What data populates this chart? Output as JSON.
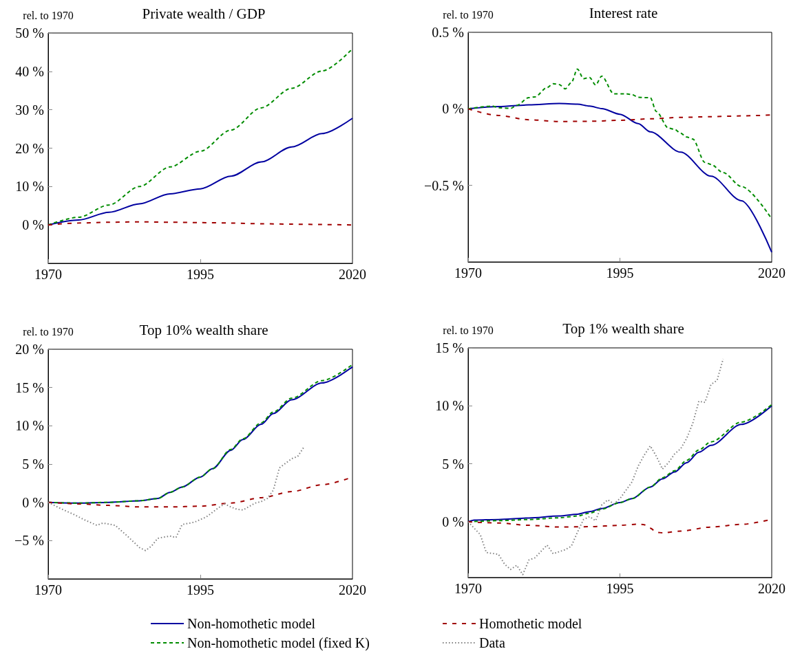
{
  "chart_data": [
    {
      "type": "line",
      "title": "Private wealth / GDP",
      "ylabel": "rel. to 1970",
      "xlim": [
        1970,
        2020
      ],
      "xticks": [
        1970,
        1995,
        2020
      ],
      "ylim": [
        -10,
        50
      ],
      "yticks": [
        {
          "value": 0,
          "label": "0 %"
        },
        {
          "value": 10,
          "label": "10 %"
        },
        {
          "value": 20,
          "label": "20 %"
        },
        {
          "value": 30,
          "label": "30 %"
        },
        {
          "value": 40,
          "label": "40 %"
        },
        {
          "value": 50,
          "label": "50 %"
        }
      ],
      "series": [
        {
          "color": "#0000a0",
          "line_style": "solid",
          "x": [
            1970,
            1975,
            1980,
            1985,
            1990,
            1995,
            2000,
            2005,
            2010,
            2015,
            2020
          ],
          "values": [
            0,
            1.3,
            3.3,
            5.5,
            8.1,
            9.4,
            12.7,
            16.4,
            20.3,
            23.8,
            27.8
          ]
        },
        {
          "color": "#008c00",
          "line_style": "dashed",
          "x": [
            1970,
            1975,
            1980,
            1985,
            1990,
            1995,
            2000,
            2005,
            2010,
            2015,
            2020
          ],
          "values": [
            0,
            2.0,
            5.2,
            10,
            15.1,
            19.2,
            24.7,
            30.5,
            35.6,
            40.1,
            45.9
          ]
        },
        {
          "color": "#a00000",
          "line_style": "dashed",
          "x": [
            1970,
            1975,
            1980,
            1985,
            1990,
            1995,
            2000,
            2005,
            2010,
            2015,
            2020
          ],
          "values": [
            0,
            0.5,
            0.7,
            0.8,
            0.7,
            0.6,
            0.5,
            0.3,
            0.2,
            0.1,
            0
          ]
        }
      ]
    },
    {
      "type": "line",
      "title": "Interest rate",
      "ylabel": "rel. to 1970",
      "xlim": [
        1970,
        2020
      ],
      "xticks": [
        1970,
        1995,
        2020
      ],
      "ylim": [
        -1,
        0.5
      ],
      "yticks": [
        {
          "value": 0.5,
          "label": "0.5 %"
        },
        {
          "value": 0,
          "label": "0 %"
        },
        {
          "value": -0.5,
          "label": "−0.5 %"
        }
      ],
      "series": [
        {
          "color": "#0000a0",
          "line_style": "solid",
          "x": [
            1970,
            1975,
            1980,
            1985,
            1988,
            1990,
            1992,
            1995,
            1998,
            2000,
            2005,
            2010,
            2015,
            2020
          ],
          "values": [
            0,
            0.015,
            0.026,
            0.035,
            0.031,
            0.018,
            0.002,
            -0.035,
            -0.096,
            -0.15,
            -0.283,
            -0.44,
            -0.6,
            -0.937
          ]
        },
        {
          "color": "#008c00",
          "line_style": "dashed",
          "x": [
            1970,
            1974,
            1975,
            1977,
            1978,
            1980,
            1981,
            1983,
            1984,
            1985,
            1986,
            1987,
            1988,
            1989,
            1990,
            1991,
            1992,
            1994,
            1996,
            1997,
            1998,
            1999,
            2000,
            2001,
            2003,
            2004,
            2005,
            2006,
            2007,
            2009,
            2010,
            2012,
            2015,
            2020
          ],
          "values": [
            0,
            0.018,
            0.007,
            0.003,
            0.023,
            0.073,
            0.078,
            0.139,
            0.164,
            0.159,
            0.131,
            0.172,
            0.26,
            0.197,
            0.205,
            0.156,
            0.214,
            0.098,
            0.098,
            0.093,
            0.076,
            0.073,
            0.073,
            -0.018,
            -0.126,
            -0.134,
            -0.159,
            -0.184,
            -0.197,
            -0.35,
            -0.363,
            -0.416,
            -0.507,
            -0.719
          ]
        },
        {
          "color": "#a00000",
          "line_style": "dashed",
          "x": [
            1970,
            1975,
            1980,
            1985,
            1990,
            1995,
            2000,
            2005,
            2010,
            2015,
            2020
          ],
          "values": [
            0,
            -0.043,
            -0.071,
            -0.083,
            -0.081,
            -0.075,
            -0.065,
            -0.056,
            -0.051,
            -0.046,
            -0.04
          ]
        }
      ]
    },
    {
      "type": "line",
      "title": "Top 10% wealth share",
      "ylabel": "rel. to 1970",
      "legend": "bottom",
      "xlim": [
        1970,
        2020
      ],
      "xticks": [
        1970,
        1995,
        2020
      ],
      "ylim": [
        -10,
        20
      ],
      "yticks": [
        {
          "value": -5,
          "label": "−5 %"
        },
        {
          "value": 0,
          "label": "0 %"
        },
        {
          "value": 5,
          "label": "5 %"
        },
        {
          "value": 10,
          "label": "10 %"
        },
        {
          "value": 15,
          "label": "15 %"
        },
        {
          "value": 20,
          "label": "20 %"
        }
      ],
      "series": [
        {
          "name": "Non-homothetic model",
          "color": "#0000a0",
          "line_style": "solid",
          "x": [
            1970,
            1975,
            1980,
            1985,
            1988,
            1990,
            1992,
            1995,
            1997,
            2000,
            2002,
            2005,
            2007,
            2010,
            2015,
            2020
          ],
          "values": [
            0,
            -0.1,
            0,
            0.2,
            0.5,
            1.3,
            2.0,
            3.3,
            4.4,
            6.8,
            8.2,
            10.2,
            11.6,
            13.4,
            15.6,
            17.7
          ]
        },
        {
          "name": "Non-homothetic model (fixed K)",
          "color": "#008c00",
          "line_style": "dashed",
          "x": [
            1970,
            1975,
            1980,
            1985,
            1988,
            1990,
            1992,
            1995,
            1997,
            2000,
            2002,
            2005,
            2007,
            2010,
            2015,
            2020
          ],
          "values": [
            0,
            -0.1,
            0,
            0.2,
            0.5,
            1.3,
            2.0,
            3.3,
            4.4,
            6.9,
            8.3,
            10.4,
            11.8,
            13.6,
            15.9,
            18.0
          ]
        },
        {
          "name": "Homothetic model",
          "color": "#a00000",
          "line_style": "dashed",
          "x": [
            1970,
            1975,
            1980,
            1985,
            1990,
            1995,
            2000,
            2005,
            2010,
            2015,
            2020
          ],
          "values": [
            0,
            -0.2,
            -0.4,
            -0.6,
            -0.6,
            -0.5,
            -0.1,
            0.6,
            1.4,
            2.3,
            3.3
          ]
        },
        {
          "name": "Data",
          "color": "#808080",
          "line_style": "dotted",
          "x": [
            1970,
            1972,
            1974,
            1976,
            1978,
            1979,
            1981,
            1983,
            1985,
            1986,
            1987,
            1988,
            1990,
            1991,
            1992,
            1994,
            1996,
            1998,
            1999,
            2000,
            2001,
            2002,
            2004,
            2005,
            2006,
            2007,
            2008,
            2010,
            2011,
            2012
          ],
          "values": [
            0,
            -0.8,
            -1.5,
            -2.3,
            -3.0,
            -2.7,
            -3.0,
            -4.4,
            -5.9,
            -6.3,
            -5.7,
            -4.7,
            -4.4,
            -4.6,
            -2.9,
            -2.6,
            -1.9,
            -0.7,
            -0.2,
            -0.6,
            -0.9,
            -1.0,
            -0.1,
            0.1,
            0.5,
            1.6,
            4.5,
            5.7,
            6.0,
            7.2
          ]
        }
      ]
    },
    {
      "type": "line",
      "title": "Top 1% wealth share",
      "ylabel": "rel. to 1970",
      "xlim": [
        1970,
        2020
      ],
      "xticks": [
        1970,
        1995,
        2020
      ],
      "ylim": [
        -4.8,
        15
      ],
      "yticks": [
        {
          "value": 0,
          "label": "0 %"
        },
        {
          "value": 5,
          "label": "5 %"
        },
        {
          "value": 10,
          "label": "10 %"
        },
        {
          "value": 15,
          "label": "15 %"
        }
      ],
      "series": [
        {
          "color": "#0000a0",
          "line_style": "solid",
          "x": [
            1970,
            1971,
            1975,
            1980,
            1985,
            1988,
            1990,
            1992,
            1995,
            1997,
            2000,
            2002,
            2004,
            2006,
            2008,
            2010,
            2015,
            2020
          ],
          "values": [
            0,
            0.15,
            0.2,
            0.33,
            0.5,
            0.66,
            0.88,
            1.15,
            1.66,
            2.0,
            3.0,
            3.7,
            4.3,
            5.1,
            6.0,
            6.6,
            8.4,
            10.0
          ]
        },
        {
          "color": "#008c00",
          "line_style": "dashed",
          "x": [
            1970,
            1975,
            1980,
            1985,
            1988,
            1990,
            1992,
            1995,
            1997,
            2000,
            2002,
            2004,
            2006,
            2008,
            2010,
            2015,
            2020
          ],
          "values": [
            0,
            0.1,
            0.2,
            0.35,
            0.5,
            0.75,
            1.1,
            1.66,
            2.0,
            3.0,
            3.8,
            4.4,
            5.3,
            6.2,
            6.9,
            8.6,
            10.1
          ]
        },
        {
          "color": "#a00000",
          "line_style": "dashed",
          "x": [
            1970,
            1975,
            1980,
            1985,
            1990,
            1995,
            1998,
            1999,
            2000,
            2001,
            2002,
            2005,
            2010,
            2015,
            2020
          ],
          "values": [
            0,
            -0.1,
            -0.3,
            -0.45,
            -0.42,
            -0.3,
            -0.2,
            -0.25,
            -0.55,
            -0.9,
            -0.95,
            -0.8,
            -0.45,
            -0.22,
            0.22
          ]
        },
        {
          "color": "#808080",
          "line_style": "dotted",
          "x": [
            1970,
            1971,
            1972,
            1973,
            1975,
            1976,
            1977,
            1978,
            1979,
            1980,
            1981,
            1983,
            1984,
            1986,
            1987,
            1988,
            1989,
            1990,
            1991,
            1992,
            1993,
            1994,
            1995,
            1997,
            1998,
            1999,
            2000,
            2001,
            2002,
            2003,
            2004,
            2005,
            2006,
            2007,
            2008,
            2009,
            2010,
            2011,
            2012
          ],
          "values": [
            0,
            -0.55,
            -1.1,
            -2.65,
            -2.8,
            -3.65,
            -4.1,
            -3.75,
            -4.55,
            -3.3,
            -3.1,
            -2.0,
            -2.75,
            -2.4,
            -2.1,
            -0.9,
            0.2,
            0.45,
            0.1,
            1.45,
            1.9,
            1.55,
            2.0,
            3.45,
            4.8,
            5.75,
            6.55,
            5.65,
            4.55,
            5.1,
            5.85,
            6.3,
            7.2,
            8.5,
            10.4,
            10.3,
            11.85,
            12.2,
            14.05
          ]
        }
      ]
    }
  ]
}
